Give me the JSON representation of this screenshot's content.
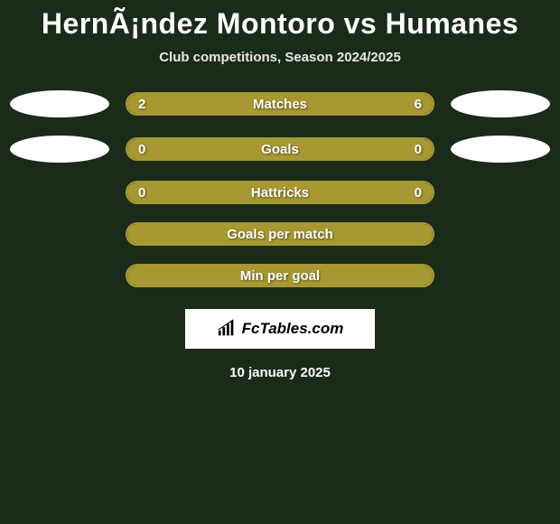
{
  "title": "HernÃ¡ndez Montoro vs Humanes",
  "subtitle": "Club competitions, Season 2024/2025",
  "colors": {
    "background": "#1a2b1a",
    "bar_fill": "#a89832",
    "bar_border": "#a89832",
    "ellipse": "#ffffff",
    "text": "#ffffff"
  },
  "rows": [
    {
      "label": "Matches",
      "left_value": "2",
      "right_value": "6",
      "left_fill_pct": 25,
      "right_fill_pct": 75,
      "show_left_ellipse": true,
      "show_right_ellipse": true,
      "fill_mode": "split"
    },
    {
      "label": "Goals",
      "left_value": "0",
      "right_value": "0",
      "left_fill_pct": 0,
      "right_fill_pct": 0,
      "show_left_ellipse": true,
      "show_right_ellipse": true,
      "fill_mode": "full"
    },
    {
      "label": "Hattricks",
      "left_value": "0",
      "right_value": "0",
      "left_fill_pct": 0,
      "right_fill_pct": 0,
      "show_left_ellipse": false,
      "show_right_ellipse": false,
      "fill_mode": "full"
    },
    {
      "label": "Goals per match",
      "left_value": "",
      "right_value": "",
      "left_fill_pct": 0,
      "right_fill_pct": 0,
      "show_left_ellipse": false,
      "show_right_ellipse": false,
      "fill_mode": "full"
    },
    {
      "label": "Min per goal",
      "left_value": "",
      "right_value": "",
      "left_fill_pct": 0,
      "right_fill_pct": 0,
      "show_left_ellipse": false,
      "show_right_ellipse": false,
      "fill_mode": "full"
    }
  ],
  "logo": {
    "icon_name": "bar-chart-icon",
    "text": "FcTables.com"
  },
  "date": "10 january 2025"
}
